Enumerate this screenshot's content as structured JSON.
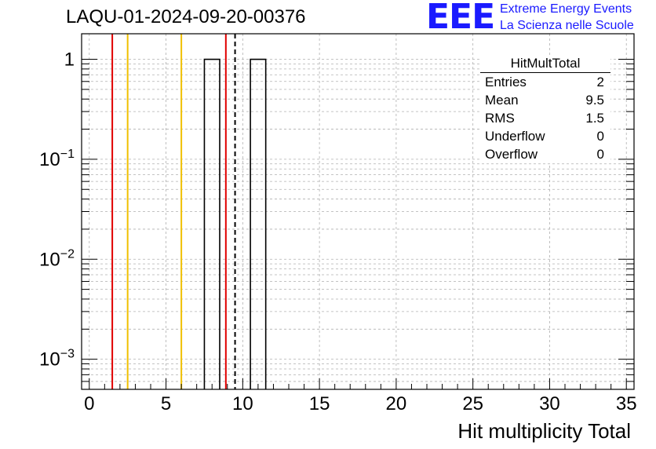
{
  "header": {
    "title": "LAQU-01-2024-09-20-00376"
  },
  "logo": {
    "mark": "EEE",
    "line1": "Extreme Energy Events",
    "line2": "La Scienza nelle Scuole",
    "color": "#1a1aff"
  },
  "stats_box": {
    "title": "HitMultTotal",
    "rows": [
      {
        "label": "Entries",
        "value": "2"
      },
      {
        "label": "Mean",
        "value": "9.5"
      },
      {
        "label": "RMS",
        "value": "1.5"
      },
      {
        "label": "Underflow",
        "value": "0"
      },
      {
        "label": "Overflow",
        "value": "0"
      }
    ]
  },
  "chart_data": {
    "type": "bar",
    "title": "LAQU-01-2024-09-20-00376",
    "xlabel": "Hit multiplicity Total",
    "ylabel": "",
    "xlim": [
      -0.5,
      35.5
    ],
    "ylim": [
      0.0005,
      1.8
    ],
    "yscale": "log",
    "grid": true,
    "bins": [
      {
        "x0": 7.5,
        "x1": 8.5,
        "value": 1
      },
      {
        "x0": 10.5,
        "x1": 11.5,
        "value": 1
      }
    ],
    "x_ticks": [
      0,
      5,
      10,
      15,
      20,
      25,
      30,
      35
    ],
    "x_ticks_labels": [
      "0",
      "5",
      "10",
      "15",
      "20",
      "25",
      "30",
      "35"
    ],
    "y_ticks": [
      {
        "value": 1,
        "base": "1",
        "exp": ""
      },
      {
        "value": 0.1,
        "base": "10",
        "exp": "−1"
      },
      {
        "value": 0.01,
        "base": "10",
        "exp": "−2"
      },
      {
        "value": 0.001,
        "base": "10",
        "exp": "−3"
      }
    ],
    "reference_lines": [
      {
        "x": 1.5,
        "color": "#e00000",
        "style": "solid"
      },
      {
        "x": 2.5,
        "color": "#f0c000",
        "style": "solid"
      },
      {
        "x": 6.0,
        "color": "#f0c000",
        "style": "solid"
      },
      {
        "x": 8.9,
        "color": "#e00000",
        "style": "solid"
      },
      {
        "x": 9.5,
        "color": "#000000",
        "style": "dashed"
      }
    ]
  }
}
